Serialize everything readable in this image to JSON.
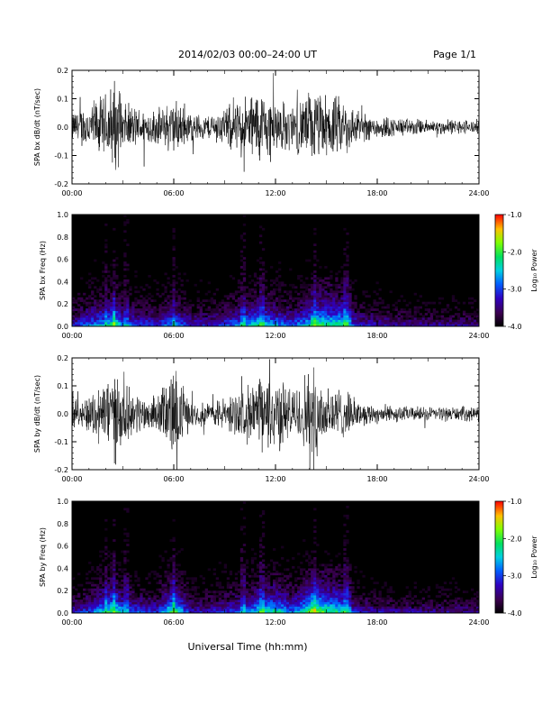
{
  "header": {
    "title": "2014/02/03  00:00–24:00 UT",
    "page": "Page 1/1"
  },
  "footer": {
    "xlabel": "Universal Time (hh:mm)"
  },
  "colorbar": {
    "label": "Log₁₀ Power",
    "ticks": [
      "-1.0",
      "-2.0",
      "-3.0",
      "-4.0"
    ],
    "range": [
      -4.0,
      -1.0
    ]
  },
  "chart_data": [
    {
      "type": "line",
      "ylabel": "SPA bx dB/dt (nT/sec)",
      "xlim": [
        0,
        24
      ],
      "ylim": [
        -0.2,
        0.2
      ],
      "xticks": [
        "00:00",
        "06:00",
        "12:00",
        "18:00",
        "24:00"
      ],
      "yticks": [
        "-0.2",
        "-0.1",
        "0.0",
        "0.1",
        "0.2"
      ],
      "x_units": "hours UT",
      "activity_envelope": {
        "x": [
          0,
          1,
          2,
          2.5,
          3,
          4,
          5,
          6,
          7,
          8,
          9,
          10,
          11,
          12,
          13,
          14,
          15,
          16,
          17,
          18,
          19,
          20,
          21,
          22,
          23,
          24
        ],
        "amplitude": [
          0.06,
          0.1,
          0.14,
          0.2,
          0.1,
          0.08,
          0.07,
          0.12,
          0.06,
          0.05,
          0.08,
          0.12,
          0.16,
          0.12,
          0.09,
          0.15,
          0.13,
          0.12,
          0.06,
          0.05,
          0.04,
          0.035,
          0.03,
          0.03,
          0.03,
          0.03
        ]
      }
    },
    {
      "type": "heatmap",
      "ylabel": "SPA bx Freq (Hz)",
      "xlim": [
        0,
        24
      ],
      "ylim": [
        0.0,
        1.0
      ],
      "xticks": [
        "00:00",
        "06:00",
        "12:00",
        "18:00",
        "24:00"
      ],
      "yticks": [
        "0.0",
        "0.2",
        "0.4",
        "0.6",
        "0.8",
        "1.0"
      ],
      "zlabel": "Log10 Power",
      "zlim": [
        -4.0,
        -1.0
      ]
    },
    {
      "type": "line",
      "ylabel": "SPA by dB/dt (nT/sec)",
      "xlim": [
        0,
        24
      ],
      "ylim": [
        -0.2,
        0.2
      ],
      "xticks": [
        "00:00",
        "06:00",
        "12:00",
        "18:00",
        "24:00"
      ],
      "yticks": [
        "-0.2",
        "-0.1",
        "0.0",
        "0.1",
        "0.2"
      ],
      "activity_envelope": {
        "x": [
          0,
          1,
          2,
          2.5,
          3,
          4,
          5,
          6,
          7,
          8,
          9,
          10,
          11,
          12,
          13,
          14,
          15,
          16,
          17,
          18,
          19,
          20,
          21,
          22,
          23,
          24
        ],
        "amplitude": [
          0.05,
          0.08,
          0.16,
          0.2,
          0.12,
          0.08,
          0.07,
          0.2,
          0.05,
          0.05,
          0.07,
          0.1,
          0.15,
          0.17,
          0.1,
          0.2,
          0.14,
          0.1,
          0.05,
          0.04,
          0.035,
          0.03,
          0.03,
          0.03,
          0.03,
          0.03
        ]
      }
    },
    {
      "type": "heatmap",
      "ylabel": "SPA by Freq (Hz)",
      "xlim": [
        0,
        24
      ],
      "ylim": [
        0.0,
        1.0
      ],
      "xticks": [
        "00:00",
        "06:00",
        "12:00",
        "18:00",
        "24:00"
      ],
      "yticks": [
        "0.0",
        "0.2",
        "0.4",
        "0.6",
        "0.8",
        "1.0"
      ],
      "zlabel": "Log10 Power",
      "zlim": [
        -4.0,
        -1.0
      ]
    }
  ]
}
